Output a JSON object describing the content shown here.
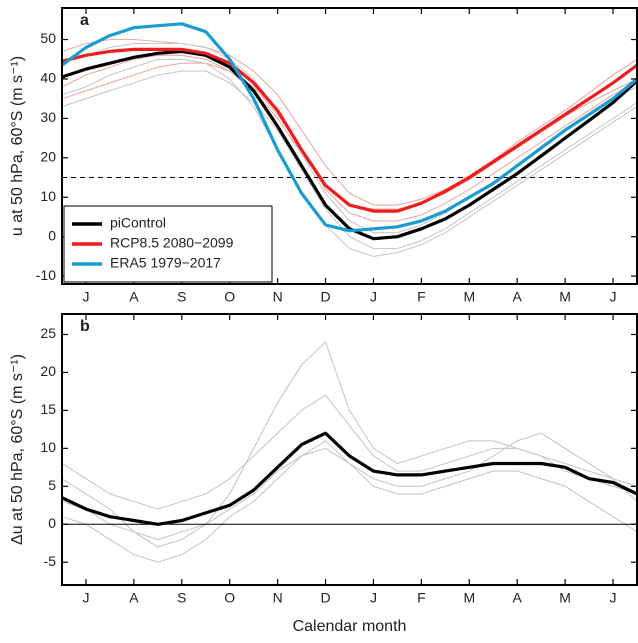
{
  "chart_data": [
    {
      "type": "line",
      "panel_label": "a",
      "ylabel": "u at 50 hPa, 60°S (m s⁻¹)",
      "x": [
        0,
        0.5,
        1,
        1.5,
        2,
        2.5,
        3,
        3.5,
        4,
        4.5,
        5,
        5.5,
        6,
        6.5,
        7,
        7.5,
        8,
        8.5,
        9,
        9.5,
        10,
        10.5,
        11,
        11.5,
        12
      ],
      "xlim": [
        0,
        12
      ],
      "xticks": [
        {
          "value": 0.5,
          "label": "J"
        },
        {
          "value": 1.5,
          "label": "A"
        },
        {
          "value": 2.5,
          "label": "S"
        },
        {
          "value": 3.5,
          "label": "O"
        },
        {
          "value": 4.5,
          "label": "N"
        },
        {
          "value": 5.5,
          "label": "D"
        },
        {
          "value": 6.5,
          "label": "J"
        },
        {
          "value": 7.5,
          "label": "F"
        },
        {
          "value": 8.5,
          "label": "M"
        },
        {
          "value": 9.5,
          "label": "A"
        },
        {
          "value": 10.5,
          "label": "M"
        },
        {
          "value": 11.5,
          "label": "J"
        }
      ],
      "ylim": [
        -12,
        58
      ],
      "yticks": [
        -10,
        0,
        10,
        20,
        30,
        40,
        50
      ],
      "reference_line": {
        "value": 15,
        "style": "dashed"
      },
      "legend": "lower left",
      "members": [
        {
          "color": "#f0a8a8",
          "values": [
            38,
            41,
            43,
            45,
            46,
            46,
            45,
            42,
            37,
            30,
            21,
            13,
            8,
            7,
            7,
            8.5,
            11,
            14.5,
            18.5,
            22.5,
            26.5,
            30.5,
            34,
            37,
            40
          ]
        },
        {
          "color": "#f0a8a8",
          "values": [
            47,
            49,
            50,
            50,
            49.5,
            49,
            48,
            46,
            42,
            36,
            27,
            18,
            11,
            8,
            8,
            9.5,
            12,
            15.5,
            19.5,
            24,
            28,
            32,
            36.5,
            41,
            45
          ]
        },
        {
          "color": "#f0a8a8",
          "values": [
            35,
            37,
            39,
            41,
            43,
            44,
            44,
            42,
            38,
            31,
            22,
            12,
            6,
            4,
            4,
            5.5,
            8.5,
            12,
            16,
            20,
            24,
            28,
            32,
            36,
            39
          ]
        },
        {
          "color": "#c8c8c8",
          "values": [
            36,
            38,
            41,
            43,
            45,
            45,
            44,
            40,
            33,
            22,
            11,
            3,
            -3,
            -5,
            -4,
            -2,
            1,
            5,
            9,
            13,
            17,
            21,
            25,
            29,
            33
          ]
        },
        {
          "color": "#c8c8c8",
          "values": [
            44,
            46,
            48,
            49,
            49,
            49,
            48,
            45,
            40,
            32,
            21,
            11,
            4,
            1,
            1,
            3,
            6,
            10,
            14,
            18,
            23,
            27,
            31,
            35,
            38
          ]
        },
        {
          "color": "#c8c8c8",
          "values": [
            33,
            35,
            37,
            39,
            41,
            42,
            42,
            39,
            34,
            27,
            17,
            7,
            0,
            -3,
            -3,
            -1,
            2,
            6,
            10,
            14,
            18,
            22,
            26,
            30,
            34
          ]
        }
      ],
      "series": [
        {
          "name": "piControl",
          "color": "#000000",
          "values": [
            40.5,
            42.5,
            44,
            45.5,
            46.5,
            47,
            46,
            43,
            37,
            28,
            18,
            8,
            2,
            -0.5,
            0,
            2,
            4.5,
            8,
            12,
            16,
            20.5,
            25,
            29.5,
            34,
            39.5
          ]
        },
        {
          "name": "RCP8.5 2080−2099",
          "color": "#ee1c1c",
          "values": [
            44.5,
            46,
            47,
            47.5,
            47.5,
            47.5,
            46.5,
            44,
            39,
            32,
            22,
            13,
            8,
            6.5,
            6.5,
            8.5,
            11.5,
            15,
            19,
            23,
            27,
            31,
            35,
            39,
            43.5
          ]
        },
        {
          "name": "ERA5 1979−2017",
          "color": "#1a9bd1",
          "values": [
            43.5,
            48,
            51,
            53,
            53.5,
            54,
            52,
            45,
            35,
            22,
            11,
            3,
            1.5,
            2,
            2.5,
            4,
            6.5,
            10,
            13.5,
            18,
            22.5,
            27,
            31,
            35,
            40
          ]
        }
      ]
    },
    {
      "type": "line",
      "panel_label": "b",
      "ylabel": "Δu at 50 hPa, 60°S (m s⁻¹)",
      "xlabel": "Calendar month",
      "x": [
        0,
        0.5,
        1,
        1.5,
        2,
        2.5,
        3,
        3.5,
        4,
        4.5,
        5,
        5.5,
        6,
        6.5,
        7,
        7.5,
        8,
        8.5,
        9,
        9.5,
        10,
        10.5,
        11,
        11.5,
        12
      ],
      "xlim": [
        0,
        12
      ],
      "xticks": [
        {
          "value": 0.5,
          "label": "J"
        },
        {
          "value": 1.5,
          "label": "A"
        },
        {
          "value": 2.5,
          "label": "S"
        },
        {
          "value": 3.5,
          "label": "O"
        },
        {
          "value": 4.5,
          "label": "N"
        },
        {
          "value": 5.5,
          "label": "D"
        },
        {
          "value": 6.5,
          "label": "J"
        },
        {
          "value": 7.5,
          "label": "F"
        },
        {
          "value": 8.5,
          "label": "M"
        },
        {
          "value": 9.5,
          "label": "A"
        },
        {
          "value": 10.5,
          "label": "M"
        },
        {
          "value": 11.5,
          "label": "J"
        }
      ],
      "ylim": [
        -8,
        27.7
      ],
      "yticks": [
        -5,
        0,
        5,
        10,
        15,
        20,
        25
      ],
      "reference_line": {
        "value": 0,
        "style": "solid"
      },
      "members": [
        {
          "color": "#c8c8c8",
          "values": [
            6,
            4,
            2,
            -1,
            -3,
            -2,
            0,
            4,
            10,
            16,
            21,
            24,
            15,
            10,
            8,
            9,
            10,
            11,
            11,
            10,
            9,
            7,
            6,
            5,
            4
          ]
        },
        {
          "color": "#c8c8c8",
          "values": [
            1,
            0,
            -2,
            -4,
            -5,
            -4,
            -2,
            1,
            3,
            6,
            9,
            11,
            8,
            5,
            4,
            4,
            5,
            6,
            7,
            7,
            6,
            5,
            3,
            1,
            -1
          ]
        },
        {
          "color": "#c8c8c8",
          "values": [
            8,
            6,
            4,
            3,
            2,
            3,
            4,
            6,
            9,
            12,
            15,
            17,
            13,
            9,
            7,
            7,
            8,
            9,
            10,
            10,
            9,
            8,
            7,
            6,
            5
          ]
        },
        {
          "color": "#c8c8c8",
          "values": [
            3,
            2,
            0,
            -1,
            -2,
            -1,
            0,
            2,
            4,
            7,
            9,
            10,
            8,
            6,
            5,
            5,
            6,
            7,
            9,
            11,
            12,
            10,
            8,
            6,
            3
          ]
        }
      ],
      "series": [
        {
          "name": null,
          "color": "#000000",
          "values": [
            3.5,
            2,
            1,
            0.5,
            0,
            0.5,
            1.5,
            2.5,
            4.5,
            7.5,
            10.5,
            12,
            9,
            7,
            6.5,
            6.5,
            7,
            7.5,
            8,
            8,
            8,
            7.5,
            6,
            5.5,
            4
          ]
        }
      ]
    }
  ]
}
